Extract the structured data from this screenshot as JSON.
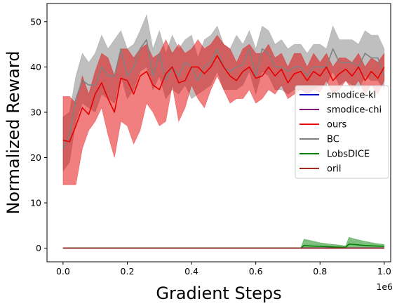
{
  "chart_data": {
    "type": "line",
    "xlabel": "Gradient Steps",
    "ylabel": "Normalized Reward",
    "x_offset_label": "1e6",
    "xlim": [
      -0.05,
      1.02
    ],
    "ylim": [
      -3,
      54
    ],
    "x_ticks": [
      0.0,
      0.2,
      0.4,
      0.6,
      0.8,
      1.0
    ],
    "x_tick_labels": [
      "0.0",
      "0.2",
      "0.4",
      "0.6",
      "0.8",
      "1.0"
    ],
    "y_ticks": [
      0,
      10,
      20,
      30,
      40,
      50
    ],
    "y_tick_labels": [
      "0",
      "10",
      "20",
      "30",
      "40",
      "50"
    ],
    "grid": false,
    "legend_position": "center-right",
    "series": [
      {
        "name": "smodice-kl",
        "color": "#0000cc",
        "alpha": 0.45,
        "x": [
          0.0,
          1.0
        ],
        "mean": [
          0,
          0
        ],
        "lower": [
          0,
          0
        ],
        "upper": [
          0,
          0
        ]
      },
      {
        "name": "smodice-chi",
        "color": "#800080",
        "alpha": 0.45,
        "x": [
          0.0,
          1.0
        ],
        "mean": [
          0,
          0
        ],
        "lower": [
          0,
          0
        ],
        "upper": [
          0,
          0
        ]
      },
      {
        "name": "ours",
        "color": "#e60000",
        "alpha": 0.5,
        "x": [
          0.0,
          0.02,
          0.04,
          0.06,
          0.08,
          0.1,
          0.12,
          0.14,
          0.16,
          0.18,
          0.2,
          0.22,
          0.24,
          0.26,
          0.28,
          0.3,
          0.32,
          0.34,
          0.36,
          0.38,
          0.4,
          0.42,
          0.44,
          0.46,
          0.48,
          0.5,
          0.52,
          0.54,
          0.56,
          0.58,
          0.6,
          0.62,
          0.64,
          0.66,
          0.68,
          0.7,
          0.72,
          0.74,
          0.76,
          0.78,
          0.8,
          0.82,
          0.84,
          0.86,
          0.88,
          0.9,
          0.92,
          0.94,
          0.96,
          0.98,
          1.0
        ],
        "mean": [
          23.8,
          23.5,
          27,
          31,
          29.5,
          34,
          36.5,
          33,
          30,
          37.5,
          37,
          34,
          38,
          39,
          36,
          35,
          38.5,
          40,
          36.5,
          37,
          40,
          40,
          38.5,
          40,
          42.5,
          40,
          38,
          37,
          39,
          40,
          37.5,
          38,
          40,
          38,
          39.5,
          36.5,
          38.5,
          39,
          37,
          39,
          38,
          40,
          37,
          38.5,
          39.5,
          38,
          40,
          37,
          39,
          37.5,
          40
        ],
        "lower": [
          14,
          14,
          14,
          22,
          26,
          28,
          31,
          25,
          20,
          28,
          27,
          23,
          26,
          32,
          30,
          27,
          28,
          36,
          28,
          31,
          36,
          33,
          31,
          35,
          38,
          35,
          32,
          33,
          33,
          35,
          32,
          33,
          35,
          34,
          36,
          33,
          34,
          35,
          34,
          35,
          34.5,
          37,
          34,
          35,
          37,
          35,
          37,
          34,
          36,
          34,
          37
        ],
        "upper": [
          33.5,
          33.5,
          32,
          38,
          34,
          39,
          43,
          42,
          38,
          44,
          44,
          42,
          44,
          45,
          42,
          43,
          46,
          43,
          45,
          43,
          44,
          46,
          44,
          45,
          47,
          45,
          44,
          41,
          44,
          45,
          43,
          43,
          45,
          42,
          43,
          40,
          43,
          43,
          40,
          43,
          41,
          43,
          40,
          42,
          42,
          41,
          43,
          40,
          42,
          41,
          43
        ]
      },
      {
        "name": "BC",
        "color": "#808080",
        "alpha": 0.5,
        "x": [
          0.0,
          0.02,
          0.04,
          0.06,
          0.08,
          0.1,
          0.12,
          0.14,
          0.16,
          0.18,
          0.2,
          0.22,
          0.24,
          0.26,
          0.28,
          0.3,
          0.32,
          0.34,
          0.36,
          0.38,
          0.4,
          0.42,
          0.44,
          0.46,
          0.48,
          0.5,
          0.52,
          0.54,
          0.56,
          0.58,
          0.6,
          0.62,
          0.64,
          0.66,
          0.68,
          0.7,
          0.72,
          0.74,
          0.76,
          0.78,
          0.8,
          0.82,
          0.84,
          0.86,
          0.88,
          0.9,
          0.92,
          0.94,
          0.96,
          0.98,
          1.0
        ],
        "mean": [
          22,
          25,
          33,
          37,
          36,
          36,
          40,
          38,
          38,
          44,
          38,
          40,
          44,
          46,
          38,
          43,
          37,
          40,
          38,
          41,
          40,
          37,
          40,
          41,
          44,
          40,
          39,
          40,
          40.5,
          44,
          38,
          44,
          43,
          40,
          40,
          39,
          40,
          40,
          38,
          40,
          40,
          40,
          44,
          41,
          41,
          41,
          40,
          43,
          42,
          42,
          38
        ],
        "lower": [
          17,
          19,
          28,
          32,
          31,
          30,
          34,
          33,
          32,
          38,
          33,
          35,
          39,
          40,
          35,
          38,
          33,
          35,
          34,
          36,
          33,
          34,
          35,
          36,
          39,
          35,
          35,
          35,
          36,
          39,
          34,
          39,
          38,
          35,
          35,
          34,
          35,
          35,
          34,
          35,
          36,
          36,
          39,
          36,
          37,
          36,
          35,
          38,
          37,
          37,
          35
        ],
        "upper": [
          29,
          30,
          38,
          43,
          41,
          43,
          47,
          44,
          46,
          48,
          44,
          45,
          48,
          51.5,
          44,
          48,
          43,
          47,
          44,
          46,
          47,
          42,
          46,
          47,
          49,
          45,
          44,
          47,
          45,
          48,
          44,
          49,
          48,
          45,
          46,
          44,
          45,
          45,
          43,
          45,
          45,
          44,
          49,
          46,
          46,
          46,
          45,
          48,
          47,
          47,
          44
        ]
      },
      {
        "name": "LobsDICE",
        "color": "#008000",
        "alpha": 0.5,
        "x": [
          0.0,
          0.74,
          0.75,
          0.77,
          0.8,
          0.83,
          0.86,
          0.88,
          0.89,
          0.91,
          0.94,
          0.97,
          1.0
        ],
        "mean": [
          0,
          0,
          0.6,
          0.5,
          0.4,
          0.3,
          0.2,
          0.2,
          0.9,
          0.8,
          0.6,
          0.5,
          0.4
        ],
        "lower": [
          0,
          0,
          0,
          0,
          0,
          0,
          0,
          0,
          0,
          0,
          0,
          0,
          0
        ],
        "upper": [
          0,
          0,
          2,
          1.7,
          1.2,
          0.9,
          0.7,
          0.5,
          2.4,
          2.0,
          1.5,
          1.1,
          0.8
        ]
      },
      {
        "name": "oril",
        "color": "#a52a2a",
        "alpha": 0.45,
        "x": [
          0.0,
          1.0
        ],
        "mean": [
          0,
          0
        ],
        "lower": [
          0,
          0
        ],
        "upper": [
          0,
          0
        ]
      }
    ],
    "draw_order": [
      "BC",
      "ours",
      "smodice-kl",
      "smodice-chi",
      "LobsDICE",
      "oril"
    ]
  }
}
